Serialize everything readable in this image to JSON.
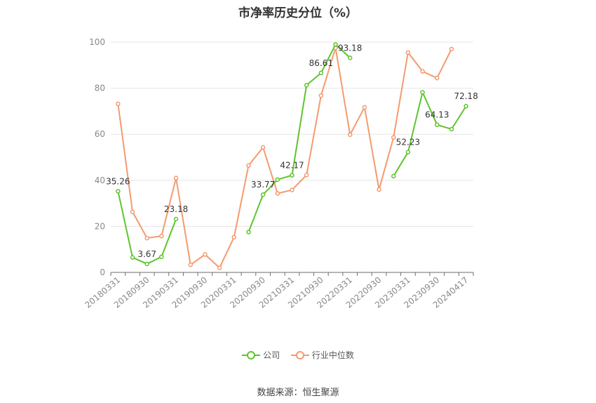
{
  "chart_data": {
    "type": "line",
    "title": "市净率历史分位（%）",
    "x": [
      "20180331",
      "20180630",
      "20180930",
      "20181231",
      "20190331",
      "20190630",
      "20190930",
      "20191231",
      "20200331",
      "20200630",
      "20200930",
      "20201231",
      "20210331",
      "20210630",
      "20210930",
      "20211231",
      "20220331",
      "20220630",
      "20220930",
      "20221231",
      "20230331",
      "20230630",
      "20230930",
      "20231231",
      "20240417"
    ],
    "x_tick_labels": [
      "20180331",
      "20180930",
      "20190331",
      "20190930",
      "20200331",
      "20200930",
      "20210331",
      "20210930",
      "20220331",
      "20220930",
      "20230331",
      "20230930",
      "20240417"
    ],
    "ylim": [
      0,
      100
    ],
    "y_ticks": [
      0,
      20,
      40,
      60,
      80,
      100
    ],
    "grid": true,
    "legend_position": "bottom",
    "series": [
      {
        "name": "公司",
        "color": "#5ec42e",
        "values": [
          35.26,
          6.5,
          3.67,
          6.8,
          23.18,
          null,
          null,
          null,
          null,
          17.5,
          33.77,
          40.3,
          42.17,
          81.3,
          86.61,
          99.0,
          93.18,
          null,
          null,
          41.8,
          52.23,
          78.2,
          64.13,
          62.2,
          72.18
        ],
        "data_labels": [
          {
            "index": 0,
            "text": "35.26"
          },
          {
            "index": 2,
            "text": "3.67"
          },
          {
            "index": 4,
            "text": "23.18"
          },
          {
            "index": 10,
            "text": "33.77"
          },
          {
            "index": 12,
            "text": "42.17"
          },
          {
            "index": 14,
            "text": "86.61"
          },
          {
            "index": 16,
            "text": "93.18"
          },
          {
            "index": 20,
            "text": "52.23"
          },
          {
            "index": 22,
            "text": "64.13"
          },
          {
            "index": 24,
            "text": "72.18"
          }
        ]
      },
      {
        "name": "行业中位数",
        "color": "#f59a6e",
        "values": [
          73.2,
          26.3,
          14.9,
          15.8,
          41.0,
          3.3,
          7.8,
          2.0,
          15.3,
          46.4,
          54.3,
          34.3,
          35.8,
          42.3,
          76.8,
          97.5,
          59.8,
          71.7,
          36.0,
          58.6,
          95.5,
          87.3,
          84.4,
          97.0,
          null
        ]
      }
    ]
  },
  "source_text": "数据来源：恒生聚源"
}
